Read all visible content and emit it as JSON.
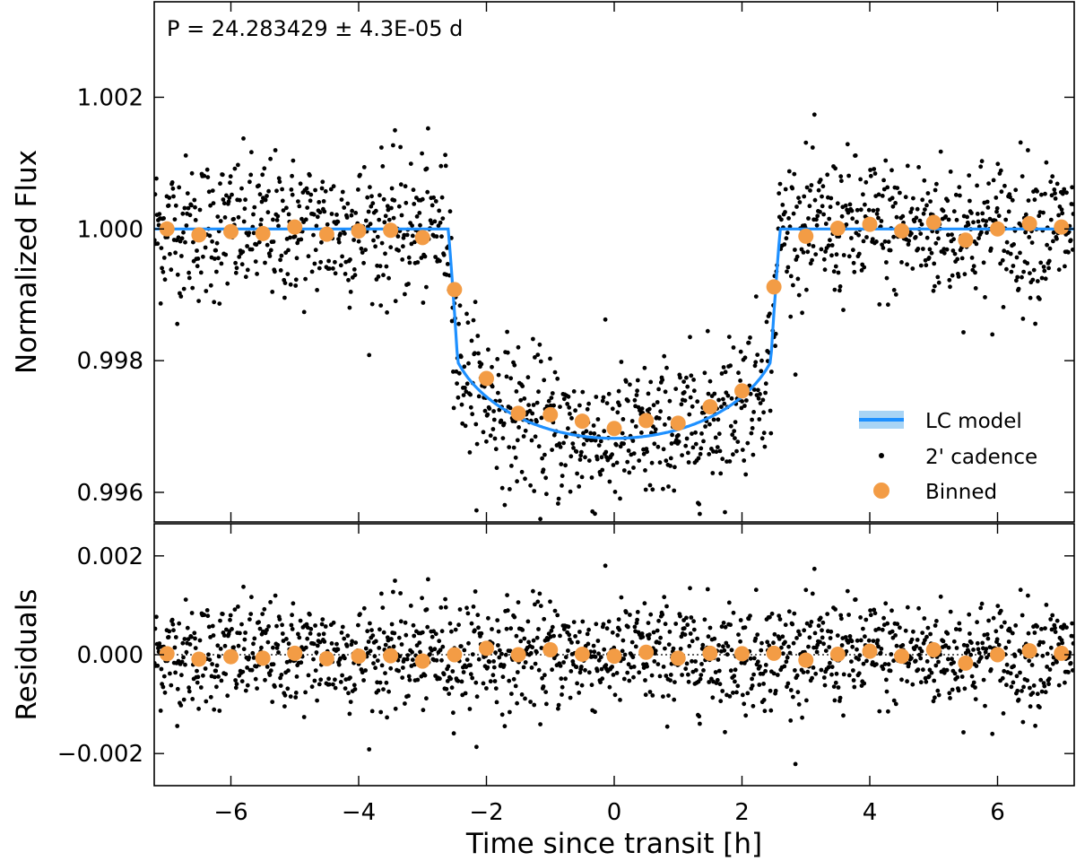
{
  "chart_data": [
    {
      "type": "scatter",
      "panel": "flux",
      "ylabel": "Normalized Flux",
      "annotation": "P = 24.283429 ± 4.3E-05 d",
      "xlim": [
        -7.2,
        7.2
      ],
      "ylim": [
        0.99555,
        1.00345
      ],
      "yticks": [
        0.996,
        0.998,
        1.0,
        1.002
      ],
      "ytick_labels": [
        "0.996",
        "0.998",
        "1.000",
        "1.002"
      ],
      "colors": {
        "model": "#1e90ff",
        "model_band": "#a8d4f5",
        "cadence": "#000000",
        "binned": "#f39c45"
      },
      "model_params": {
        "depth": 0.00297,
        "t_half": 2.6,
        "ingress": 0.15,
        "limb_darkening": 0.55
      },
      "cadence_model": {
        "n_points": 1500,
        "scatter_sigma": 0.00055,
        "seed": 12345
      },
      "binned": {
        "x": [
          -7.0,
          -6.5,
          -6.0,
          -5.5,
          -5.0,
          -4.5,
          -4.0,
          -3.5,
          -3.0,
          -2.5,
          -2.0,
          -1.5,
          -1.0,
          -0.5,
          0.0,
          0.5,
          1.0,
          1.5,
          2.0,
          2.5,
          3.0,
          3.5,
          4.0,
          4.5,
          5.0,
          5.5,
          6.0,
          6.5,
          7.0
        ],
        "y": [
          1.0,
          0.99991,
          0.99996,
          0.99993,
          1.00003,
          0.99992,
          0.99997,
          0.99998,
          0.99987,
          0.99908,
          0.99773,
          0.9972,
          0.99718,
          0.99708,
          0.99697,
          0.99709,
          0.99705,
          0.9973,
          0.99754,
          0.99912,
          0.99989,
          1.00001,
          1.00007,
          0.99997,
          1.0001,
          0.99983,
          1.0,
          1.00008,
          1.00003
        ]
      },
      "legend": {
        "position": "lower-right",
        "entries": [
          "LC model",
          "2' cadence",
          "Binned"
        ]
      }
    },
    {
      "type": "scatter",
      "panel": "residuals",
      "ylabel": "Residuals",
      "xlabel": "Time since transit [h]",
      "xlim": [
        -7.2,
        7.2
      ],
      "ylim": [
        -0.00265,
        0.00265
      ],
      "yticks": [
        -0.002,
        0.0,
        0.002
      ],
      "ytick_labels": [
        "−0.002",
        "0.000",
        "0.002"
      ],
      "xticks": [
        -6,
        -4,
        -2,
        0,
        2,
        4,
        6
      ],
      "xtick_labels": [
        "−6",
        "−4",
        "−2",
        "0",
        "2",
        "4",
        "6"
      ],
      "zero_line": "dotted",
      "binned_residuals": {
        "x": [
          -7.0,
          -6.5,
          -6.0,
          -5.5,
          -5.0,
          -4.5,
          -4.0,
          -3.5,
          -3.0,
          -2.5,
          -2.0,
          -1.5,
          -1.0,
          -0.5,
          0.0,
          0.5,
          1.0,
          1.5,
          2.0,
          2.5,
          3.0,
          3.5,
          4.0,
          4.5,
          5.0,
          5.5,
          6.0,
          6.5,
          7.0
        ],
        "y": [
          2e-05,
          -9e-05,
          -4e-05,
          -7e-05,
          3e-05,
          -8e-05,
          -3e-05,
          -2e-05,
          -0.00013,
          0.0,
          0.00013,
          0.0,
          0.0001,
          1e-05,
          -3e-05,
          5e-05,
          -7e-05,
          3e-05,
          2e-05,
          3e-05,
          -0.00011,
          1e-05,
          7e-05,
          -3e-05,
          0.0001,
          -0.00017,
          0.0,
          8e-05,
          3e-05
        ]
      }
    }
  ]
}
